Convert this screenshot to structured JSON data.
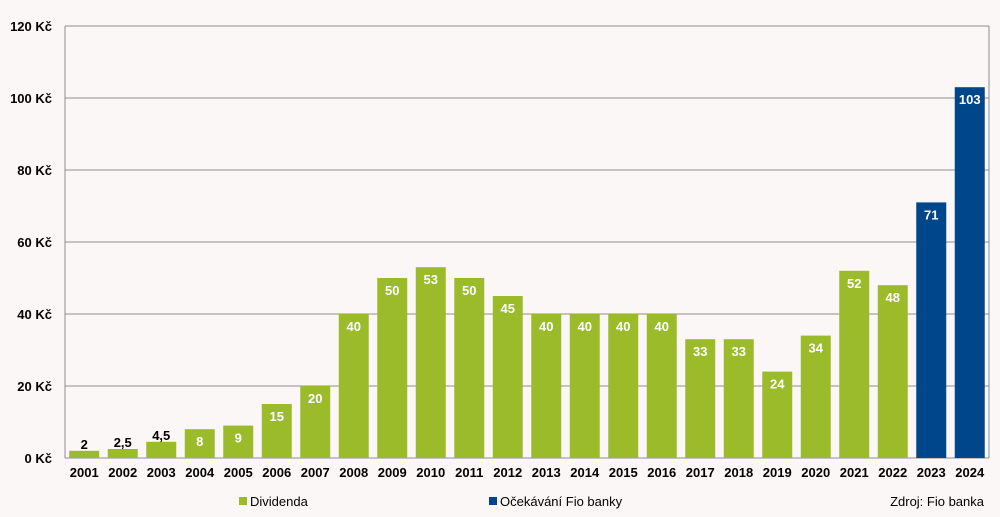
{
  "chart_data": {
    "type": "bar",
    "title": "",
    "xlabel": "",
    "ylabel": "",
    "ylim": [
      0,
      120
    ],
    "yticks": [
      0,
      20,
      40,
      60,
      80,
      100,
      120
    ],
    "ytick_labels": [
      "0 Kč",
      "20 Kč",
      "40 Kč",
      "60 Kč",
      "80 Kč",
      "100 Kč",
      "120 Kč"
    ],
    "grid": true,
    "categories": [
      "2001",
      "2002",
      "2003",
      "2004",
      "2005",
      "2006",
      "2007",
      "2008",
      "2009",
      "2010",
      "2011",
      "2012",
      "2013",
      "2014",
      "2015",
      "2016",
      "2017",
      "2018",
      "2019",
      "2020",
      "2021",
      "2022",
      "2023",
      "2024"
    ],
    "values": [
      2,
      2.5,
      4.5,
      8,
      9,
      15,
      20,
      40,
      50,
      53,
      50,
      45,
      40,
      40,
      40,
      40,
      33,
      33,
      24,
      34,
      52,
      48,
      71,
      103
    ],
    "data_labels": [
      "2",
      "2,5",
      "4,5",
      "8",
      "9",
      "15",
      "20",
      "40",
      "50",
      "53",
      "50",
      "45",
      "40",
      "40",
      "40",
      "40",
      "33",
      "33",
      "24",
      "34",
      "52",
      "48",
      "71",
      "103"
    ],
    "series_of_bar": [
      "Dividenda",
      "Dividenda",
      "Dividenda",
      "Dividenda",
      "Dividenda",
      "Dividenda",
      "Dividenda",
      "Dividenda",
      "Dividenda",
      "Dividenda",
      "Dividenda",
      "Dividenda",
      "Dividenda",
      "Dividenda",
      "Dividenda",
      "Dividenda",
      "Dividenda",
      "Dividenda",
      "Dividenda",
      "Dividenda",
      "Dividenda",
      "Dividenda",
      "Očekávání Fio banky",
      "Očekávání Fio banky"
    ],
    "legend": [
      {
        "name": "Dividenda",
        "color": "#9bbb2b"
      },
      {
        "name": "Očekávání Fio banky",
        "color": "#00468b"
      }
    ],
    "legend_position": "bottom",
    "source": "Zdroj: Fio banka"
  }
}
